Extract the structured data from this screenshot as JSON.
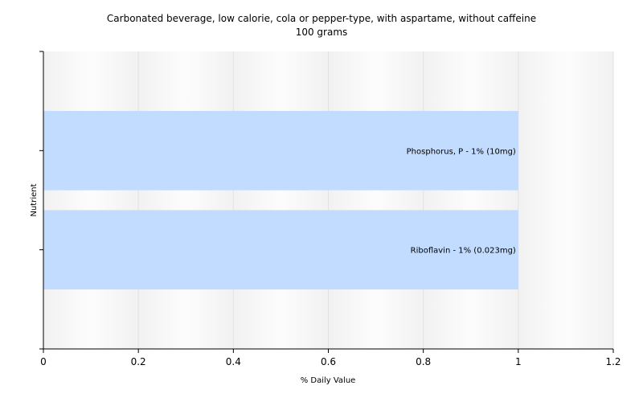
{
  "chart_data": {
    "type": "bar",
    "orientation": "horizontal",
    "title": "Carbonated beverage, low calorie, cola or pepper-type, with aspartame, without caffeine",
    "subtitle": "100 grams",
    "xlabel": "% Daily Value",
    "ylabel": "Nutrient",
    "xlim": [
      0,
      1.2
    ],
    "x_ticks": [
      "0",
      "0.2",
      "0.4",
      "0.6",
      "0.8",
      "1",
      "1.2"
    ],
    "grid": true,
    "categories": [
      "Phosphorus, P",
      "Riboflavin"
    ],
    "values": [
      1,
      1
    ],
    "bar_labels": [
      "Phosphorus, P - 1% (10mg)",
      "Riboflavin - 1% (0.023mg)"
    ],
    "bar_color": "#c2dcff",
    "plot_background": "#f7f7f7"
  }
}
